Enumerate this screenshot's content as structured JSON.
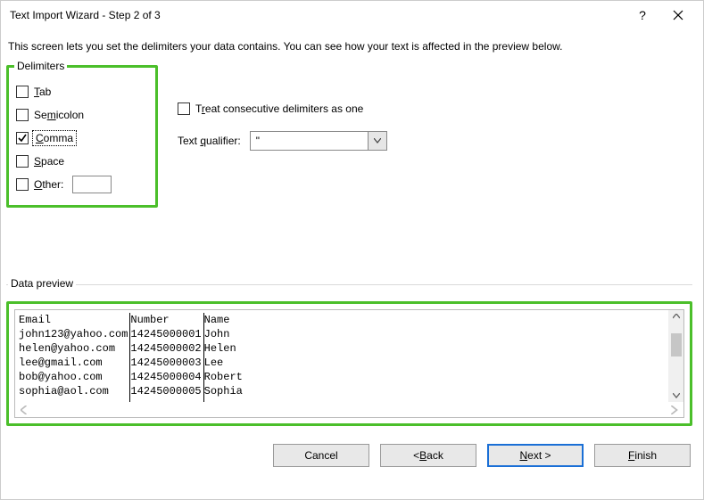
{
  "window": {
    "title": "Text Import Wizard - Step 2 of 3"
  },
  "intro": "This screen lets you set the delimiters your data contains.  You can see how your text is affected in the preview below.",
  "delimiters": {
    "legend": "Delimiters",
    "items": [
      {
        "pre": "",
        "u": "T",
        "post": "ab",
        "checked": false
      },
      {
        "pre": "Se",
        "u": "m",
        "post": "icolon",
        "checked": false
      },
      {
        "pre": "",
        "u": "C",
        "post": "omma",
        "checked": true,
        "focused": true
      },
      {
        "pre": "",
        "u": "S",
        "post": "pace",
        "checked": false
      },
      {
        "pre": "",
        "u": "O",
        "post": "ther:",
        "checked": false,
        "hasInput": true,
        "inputValue": ""
      }
    ]
  },
  "consecutive": {
    "pre": "T",
    "u": "r",
    "post": "eat consecutive delimiters as one",
    "checked": false
  },
  "qualifier": {
    "label_pre": "Text ",
    "label_u": "q",
    "label_post": "ualifier:",
    "value": "\""
  },
  "preview": {
    "legend": "Data preview",
    "columns": [
      {
        "width_ch": 17,
        "rows": [
          "Email",
          "john123@yahoo.com",
          "helen@yahoo.com",
          "lee@gmail.com",
          "bob@yahoo.com",
          "sophia@aol.com"
        ]
      },
      {
        "width_ch": 11,
        "rows": [
          "Number",
          "14245000001",
          "14245000002",
          "14245000003",
          "14245000004",
          "14245000005"
        ]
      },
      {
        "width_ch": 8,
        "rows": [
          "Name",
          "John",
          "Helen",
          "Lee",
          "Robert",
          "Sophia"
        ]
      }
    ]
  },
  "buttons": {
    "cancel": "Cancel",
    "back_pre": "<  ",
    "back_u": "B",
    "back_post": "ack",
    "next_u": "N",
    "next_post": "ext  >",
    "finish_u": "F",
    "finish_post": "inish"
  },
  "colors": {
    "highlight": "#4bbf2a",
    "button_bg": "#e8e8e8",
    "default_border": "#1a6fd6"
  }
}
